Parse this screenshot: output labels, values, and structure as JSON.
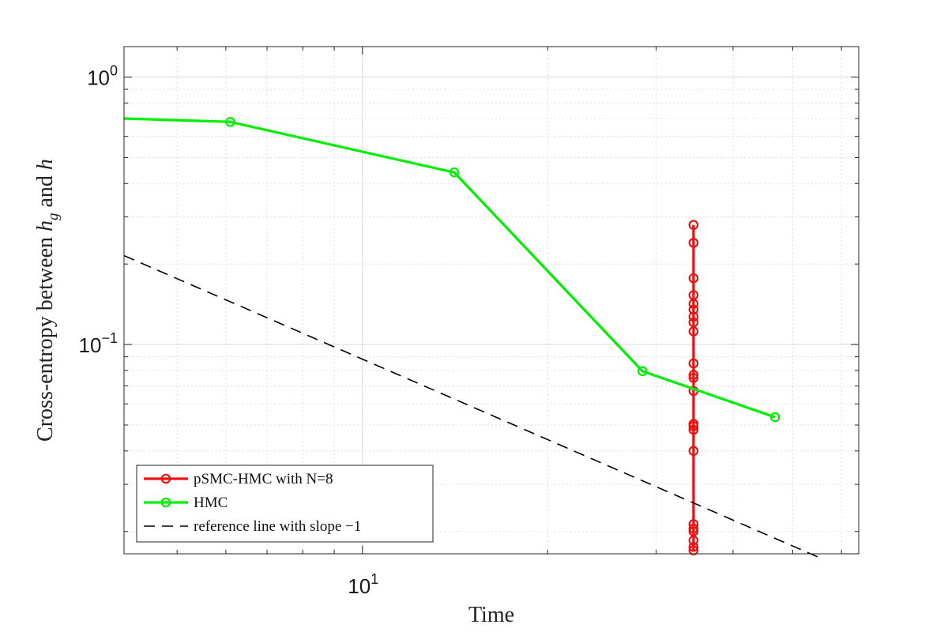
{
  "chart_data": {
    "type": "line",
    "xscale": "log",
    "yscale": "log",
    "xlim": [
      4.1,
      64
    ],
    "ylim": [
      0.0165,
      1.3
    ],
    "grid": true,
    "minor_grid": true,
    "xlabel": "Time",
    "ylabel": {
      "prefix": "Cross-entropy between ",
      "var1": "h",
      "sub": "g",
      "middle": " and ",
      "var2": "h"
    },
    "x_ticks": [
      {
        "value": 10,
        "base": "10",
        "exp": "1"
      }
    ],
    "y_ticks": [
      {
        "value": 1,
        "base": "10",
        "exp": "0"
      },
      {
        "value": 0.1,
        "base": "10",
        "exp": "−1"
      }
    ],
    "legend_position": "bottom-left",
    "series": [
      {
        "name": "pSMC-HMC with N=8",
        "color": "#ee1111",
        "style": "solid-circles",
        "points": [
          [
            34.5,
            0.28
          ],
          [
            34.5,
            0.24
          ],
          [
            34.5,
            0.177
          ],
          [
            34.5,
            0.153
          ],
          [
            34.5,
            0.142
          ],
          [
            34.5,
            0.135
          ],
          [
            34.5,
            0.127
          ],
          [
            34.5,
            0.121
          ],
          [
            34.5,
            0.112
          ],
          [
            34.5,
            0.085
          ],
          [
            34.5,
            0.077
          ],
          [
            34.5,
            0.075
          ],
          [
            34.5,
            0.067
          ],
          [
            34.5,
            0.0505
          ],
          [
            34.5,
            0.0495
          ],
          [
            34.5,
            0.048
          ],
          [
            34.5,
            0.04
          ],
          [
            34.5,
            0.0213
          ],
          [
            34.5,
            0.0205
          ],
          [
            34.5,
            0.02
          ],
          [
            34.5,
            0.0185
          ],
          [
            34.5,
            0.0175
          ],
          [
            34.5,
            0.017
          ]
        ]
      },
      {
        "name": "HMC",
        "color": "#00ee00",
        "style": "solid-circles",
        "points": [
          [
            4.1,
            0.7
          ],
          [
            6.1,
            0.68
          ],
          [
            14.1,
            0.44
          ],
          [
            28.5,
            0.0795
          ],
          [
            46.8,
            0.0535
          ]
        ],
        "markers_from_index": 1
      },
      {
        "name": "reference line with slope −1",
        "color": "#000000",
        "style": "dashed",
        "points": [
          [
            4.1,
            0.215
          ],
          [
            56.0,
            0.01575
          ]
        ]
      }
    ]
  }
}
